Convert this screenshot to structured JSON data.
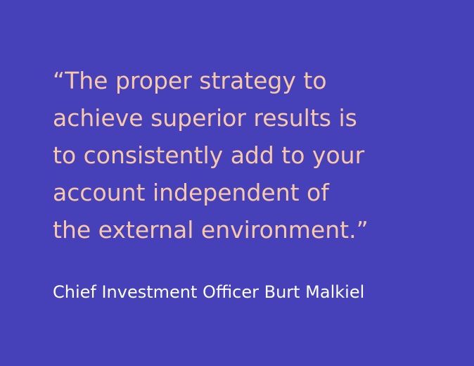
{
  "colors": {
    "background": "#4641b8",
    "quote_text": "#f7c8aa",
    "attribution_text": "#ffffff"
  },
  "quote": {
    "lines": [
      "“The proper strategy to",
      "achieve superior results is",
      "to consistently add to your",
      "account independent of",
      "the external environment.”"
    ]
  },
  "attribution": {
    "text": "Chief Investment Officer Burt Malkiel"
  }
}
